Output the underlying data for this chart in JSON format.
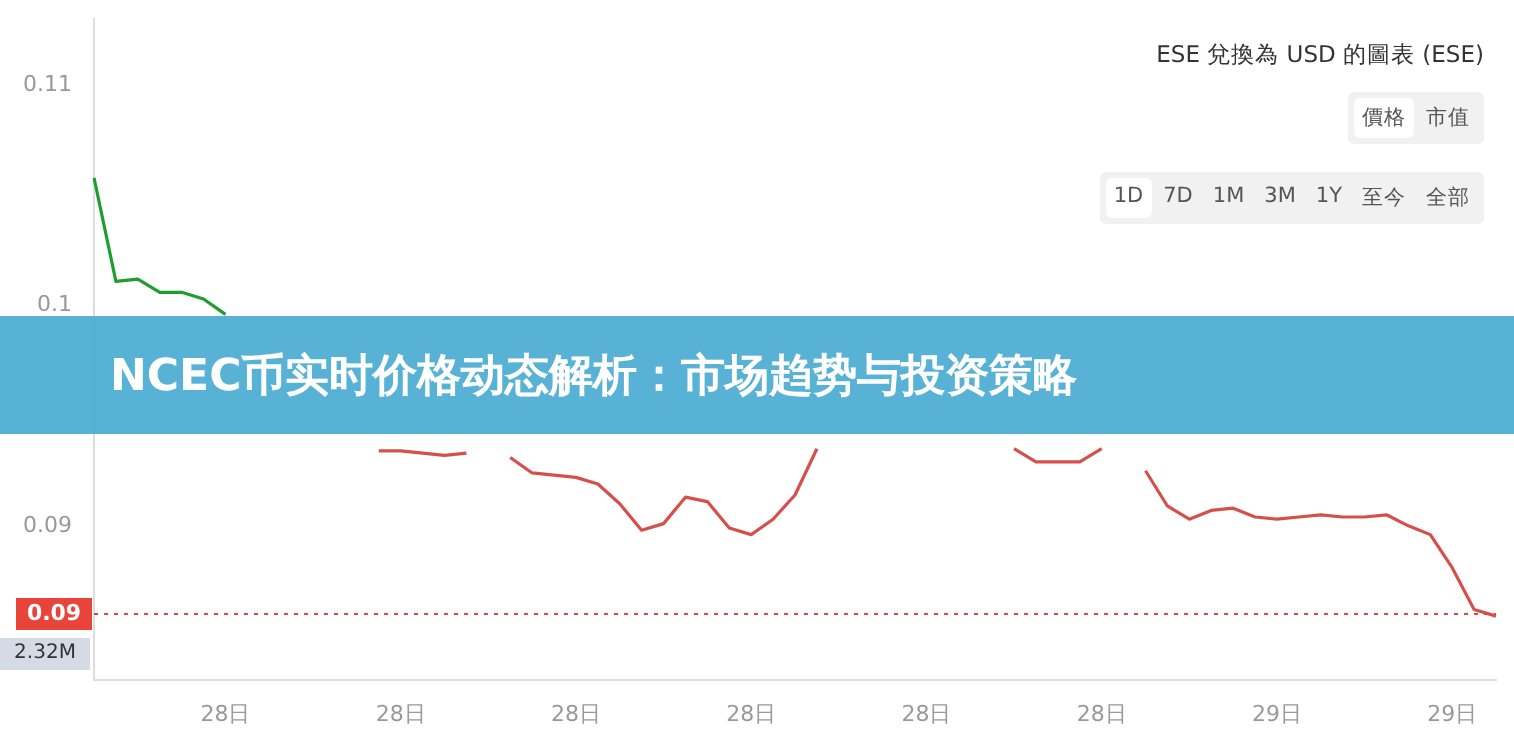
{
  "chart_data": {
    "type": "line",
    "title": "NCEC币实时价格动态解析：市场趋势与投资策略",
    "subtitle": "ESE 兌換為 USD 的圖表 (ESE)",
    "annotations": [
      "價格",
      "市值",
      "1D",
      "7D",
      "1M",
      "3M",
      "1Y",
      "至今",
      "全部",
      "2.32M"
    ],
    "categories": [
      null,
      null,
      null,
      null,
      null,
      null,
      "28日",
      null,
      null,
      null,
      null,
      null,
      null,
      null,
      "28日",
      null,
      null,
      null,
      null,
      null,
      null,
      null,
      "28日",
      null,
      null,
      null,
      null,
      null,
      null,
      null,
      "28日",
      null,
      null,
      null,
      null,
      null,
      null,
      null,
      "28日",
      null,
      null,
      null,
      null,
      null,
      null,
      null,
      "28日",
      null,
      null,
      null,
      null,
      null,
      null,
      null,
      "29日",
      null,
      null,
      null,
      null,
      null,
      null,
      null,
      "29日",
      null,
      null
    ],
    "series": [
      {
        "color": "#1e9e2e",
        "values": [
          0.1058,
          0.1011,
          0.1012,
          0.1006,
          0.1006,
          0.1003,
          0.0996,
          null,
          null,
          null,
          null,
          null,
          null,
          null,
          null,
          null,
          null,
          null,
          null,
          null,
          null,
          null,
          null,
          null,
          null,
          null,
          null,
          null,
          null,
          null,
          null,
          null,
          null,
          null,
          null,
          null,
          null,
          null,
          null,
          null,
          null,
          null,
          null,
          null,
          null,
          null,
          null,
          null,
          null,
          null,
          null,
          null,
          null,
          null,
          null,
          null,
          null,
          null,
          null,
          null,
          null,
          null,
          null,
          null,
          null
        ]
      },
      {
        "color": "#d6504b",
        "values": [
          null,
          null,
          null,
          null,
          null,
          null,
          null,
          null,
          null,
          null,
          null,
          null,
          null,
          0.0934,
          0.0934,
          0.0933,
          0.0932,
          0.0933,
          null,
          0.0931,
          0.0924,
          0.0923,
          0.0922,
          0.0919,
          0.091,
          0.0898,
          0.0901,
          0.0913,
          0.0911,
          0.0899,
          0.0896,
          0.0903,
          0.0914,
          0.0935,
          null,
          null,
          null,
          null,
          null,
          null,
          null,
          null,
          0.0935,
          0.0929,
          0.0929,
          0.0929,
          0.0935,
          null,
          0.0925,
          0.0909,
          0.0903,
          0.0907,
          0.0908,
          0.0904,
          0.0903,
          0.0904,
          0.0905,
          0.0904,
          0.0904,
          0.0905,
          0.09,
          0.0896,
          0.0881,
          0.0862,
          0.0859
        ]
      }
    ],
    "ylim": [
      0.083,
      0.113
    ],
    "yticks": [
      0.09,
      0.1,
      0.11
    ],
    "ref_lines": [
      {
        "axis": "y",
        "value": 0.086,
        "label": "0.09",
        "color": "#e8443a",
        "line_style": "dotted"
      }
    ],
    "marker": "none",
    "line_style": "solid",
    "legend": false,
    "grid": false
  }
}
